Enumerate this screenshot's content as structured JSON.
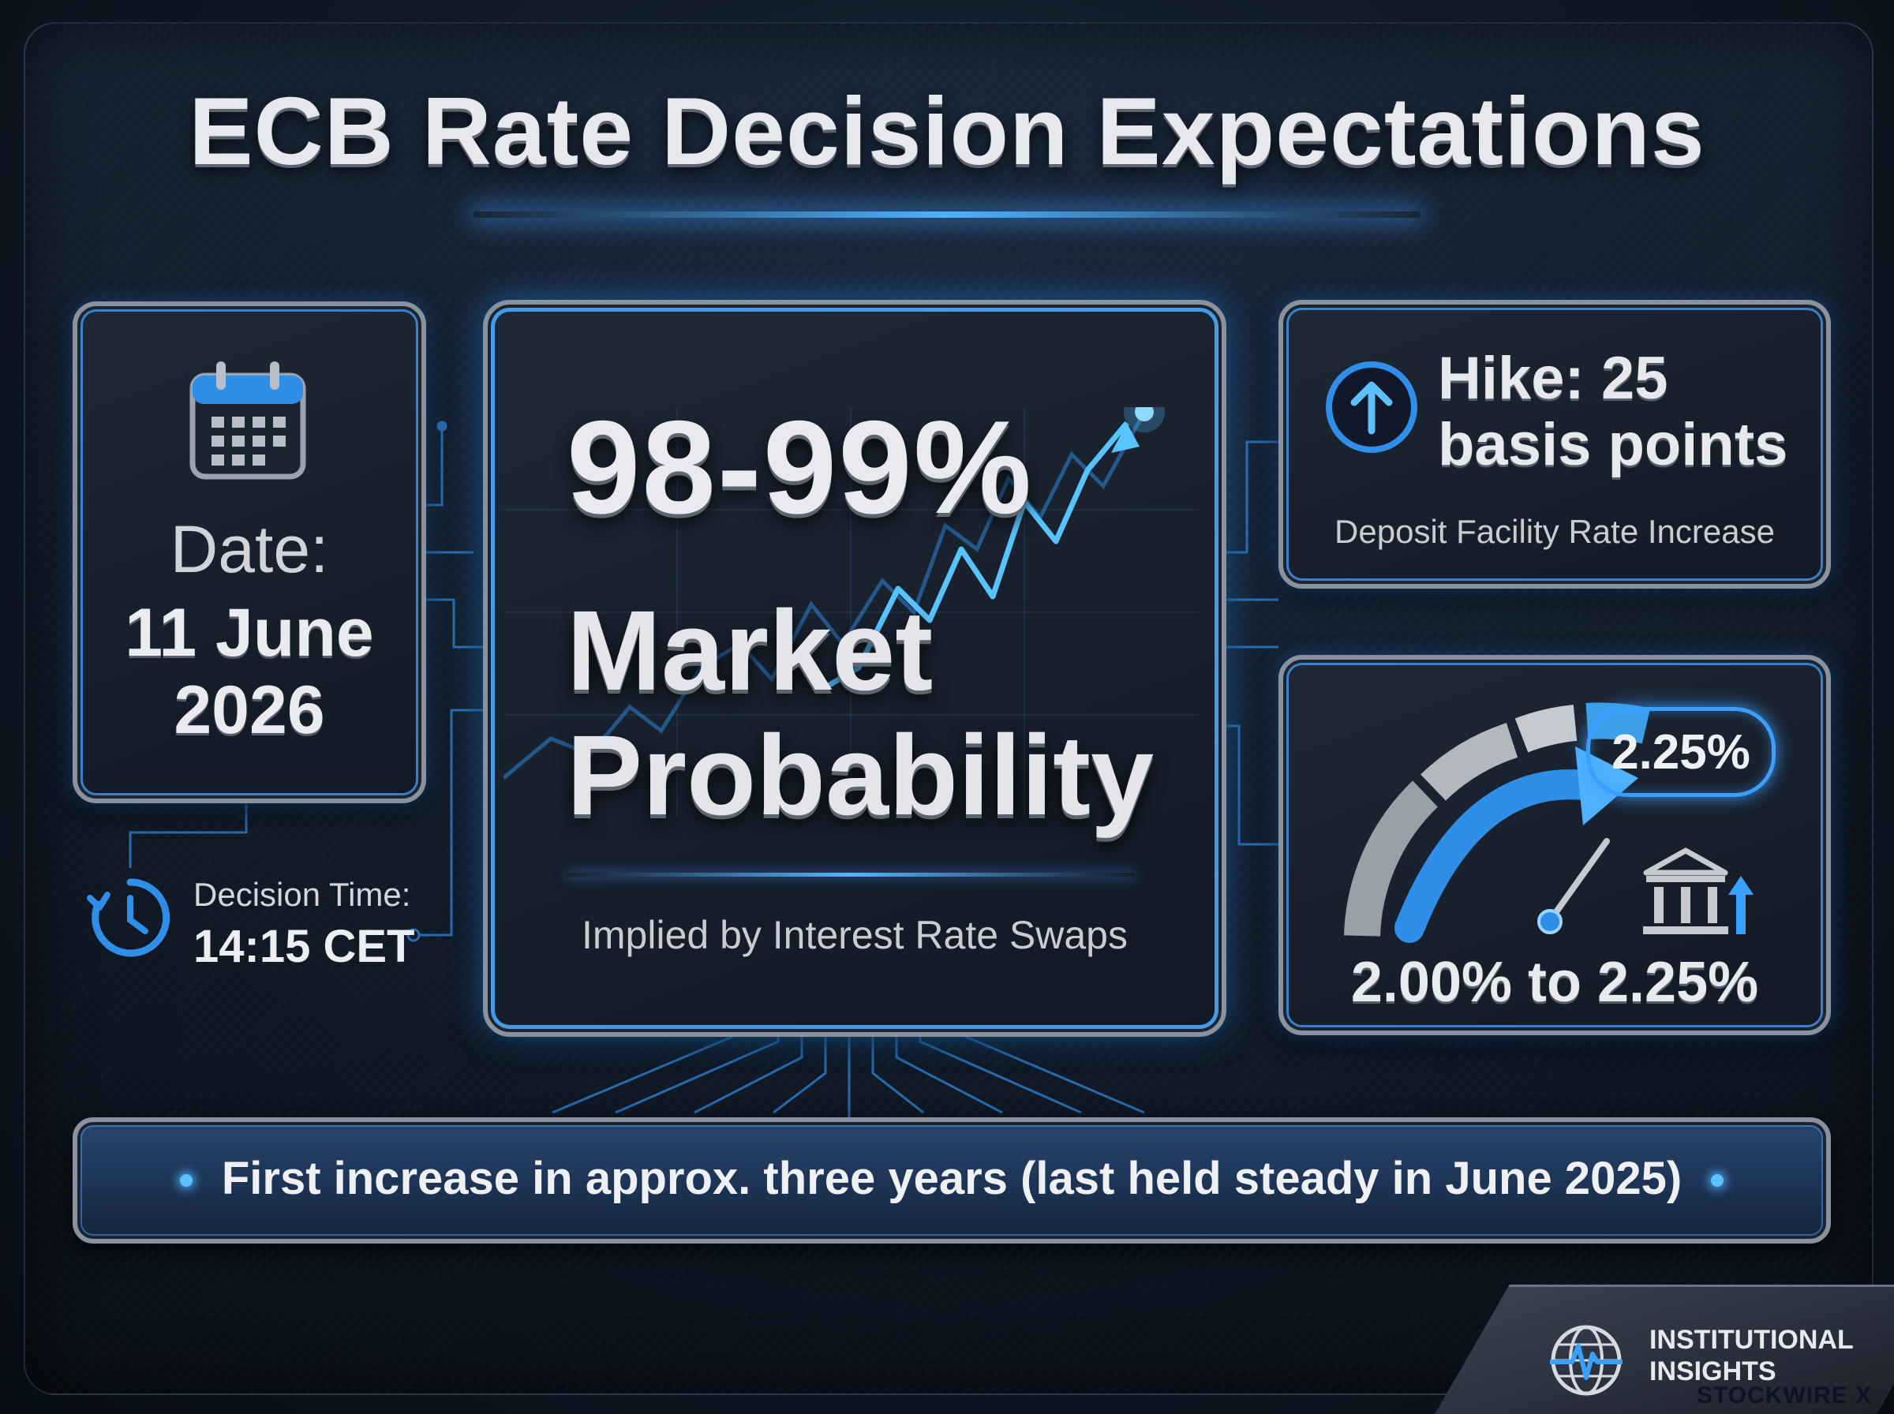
{
  "title": "ECB Rate Decision Expectations",
  "date_card": {
    "label": "Date:",
    "value_line1": "11 June",
    "value_line2": "2026",
    "icon": "calendar-icon"
  },
  "decision_time": {
    "label": "Decision Time:",
    "value": "14:15 CET",
    "icon": "clock-icon"
  },
  "probability_card": {
    "value": "98-99%",
    "label_line1": "Market",
    "label_line2": "Probability",
    "subtitle": "Implied by Interest Rate Swaps",
    "icon": "rising-chart-icon"
  },
  "hike_card": {
    "line1": "Hike: 25",
    "line2": "basis points",
    "subtitle": "Deposit Facility Rate Increase",
    "icon": "arrow-up-circle-icon"
  },
  "rate_card": {
    "target": "2.25%",
    "range": "2.00% to 2.25%",
    "icons": [
      "gauge-icon",
      "bank-icon"
    ]
  },
  "banner": {
    "text": "First increase in approx. three years (last held steady in June 2025)"
  },
  "brand": {
    "name_line1": "INSTITUTIONAL",
    "name_line2": "INSIGHTS",
    "sub": "STOCKWIRE X",
    "icon": "globe-pulse-icon"
  },
  "colors": {
    "accent": "#3aa0ff",
    "background": "#111b29",
    "text": "#e6e8ec"
  }
}
